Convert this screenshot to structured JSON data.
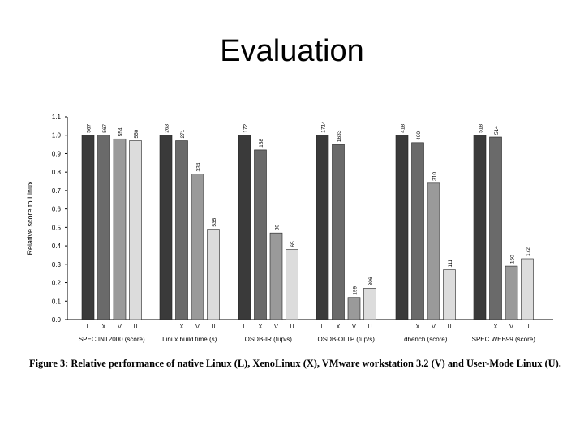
{
  "slide": {
    "title": "Evaluation"
  },
  "caption": "Figure 3: Relative performance of native Linux (L), XenoLinux (X), VMware workstation 3.2 (V) and User-Mode Linux (U).",
  "chart_data": {
    "type": "bar",
    "ylabel": "Relative score to Linux",
    "xlabel": "",
    "ylim": [
      0.0,
      1.1
    ],
    "yticks": [
      "0.0",
      "0.1",
      "0.2",
      "0.3",
      "0.4",
      "0.5",
      "0.6",
      "0.7",
      "0.8",
      "0.9",
      "1.0",
      "1.1"
    ],
    "grid": false,
    "legend": "none",
    "bar_letters": [
      "L",
      "X",
      "V",
      "U"
    ],
    "series_colors": [
      "#3a3a3a",
      "#6a6a6a",
      "#9a9a9a",
      "#dcdcdc"
    ],
    "groups": [
      {
        "name": "SPEC INT2000 (score)",
        "values": [
          1.0,
          1.0,
          0.98,
          0.97
        ],
        "labels": [
          "567",
          "567",
          "554",
          "550"
        ]
      },
      {
        "name": "Linux build time (s)",
        "values": [
          1.0,
          0.97,
          0.79,
          0.49
        ],
        "labels": [
          "263",
          "271",
          "334",
          "535"
        ]
      },
      {
        "name": "OSDB-IR (tup/s)",
        "values": [
          1.0,
          0.92,
          0.47,
          0.38
        ],
        "labels": [
          "172",
          "158",
          "80",
          "65"
        ]
      },
      {
        "name": "OSDB-OLTP (tup/s)",
        "values": [
          1.0,
          0.95,
          0.12,
          0.17
        ],
        "labels": [
          "1714",
          "1633",
          "199",
          "306"
        ]
      },
      {
        "name": "dbench (score)",
        "values": [
          1.0,
          0.96,
          0.74,
          0.27
        ],
        "labels": [
          "418",
          "400",
          "310",
          "111"
        ]
      },
      {
        "name": "SPEC WEB99 (score)",
        "values": [
          1.0,
          0.99,
          0.29,
          0.33
        ],
        "labels": [
          "518",
          "514",
          "150",
          "172"
        ]
      }
    ]
  }
}
